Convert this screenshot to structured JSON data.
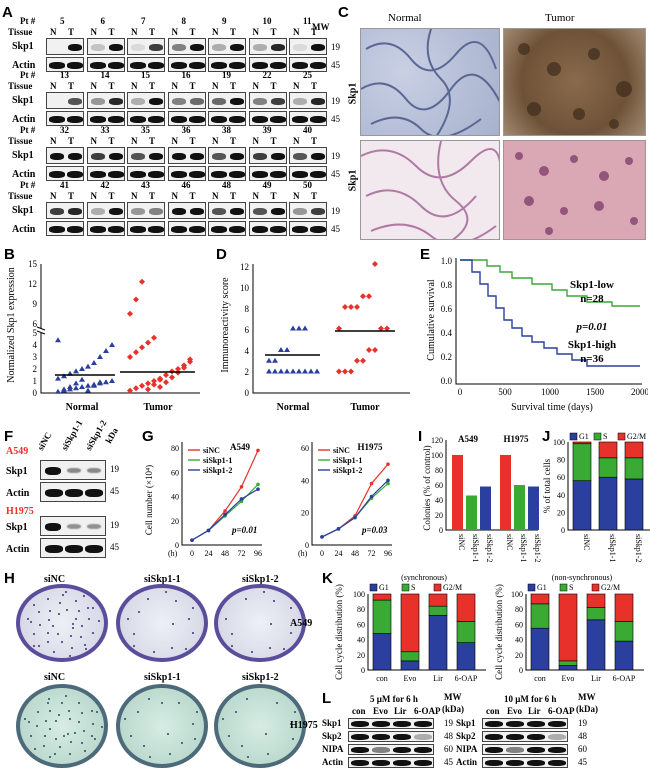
{
  "panels": {
    "A": "A",
    "B": "B",
    "C": "C",
    "D": "D",
    "E": "E",
    "F": "F",
    "G": "G",
    "H": "H",
    "I": "I",
    "J": "J",
    "K": "K",
    "L": "L"
  },
  "blotA": {
    "pt_label": "Pt #",
    "tissue_label": "Tissue",
    "skp1": "Skp1",
    "actin": "Actin",
    "mw": "MW",
    "mw19": "19",
    "mw45": "45",
    "n": "N",
    "t": "T",
    "rows": [
      [
        "5",
        "6",
        "7",
        "8",
        "9",
        "10",
        "11"
      ],
      [
        "13",
        "14",
        "15",
        "16",
        "19",
        "22",
        "25"
      ],
      [
        "32",
        "33",
        "35",
        "36",
        "38",
        "39",
        "40"
      ],
      [
        "41",
        "42",
        "43",
        "46",
        "48",
        "49",
        "50"
      ]
    ]
  },
  "panelC": {
    "normal": "Normal",
    "tumor": "Tumor",
    "row_label": "Skp1"
  },
  "panelB": {
    "ylabel": "Normalized Skp1 expression",
    "x": [
      "Normal",
      "Tumor"
    ],
    "yticks_top": [
      "15",
      "12",
      "9",
      "6"
    ],
    "yticks_bottom": [
      "5",
      "4",
      "3",
      "2",
      "1",
      "0"
    ]
  },
  "panelD": {
    "ylabel": "Immunoreactivity score",
    "x": [
      "Normal",
      "Tumor"
    ],
    "yticks": [
      "12",
      "10",
      "8",
      "6",
      "4",
      "2",
      "0"
    ]
  },
  "panelE": {
    "ylabel": "Cumulative survival",
    "xlabel": "Survival time (days)",
    "xticks": [
      "0",
      "500",
      "1000",
      "1500",
      "2000"
    ],
    "yticks": [
      "1.0",
      "0.8",
      "0.6",
      "0.4",
      "0.2",
      "0.0"
    ],
    "low": "Skp1-low",
    "low_n": "n=28",
    "p": "p=0.01",
    "high": "Skp1-high",
    "high_n": "n=36"
  },
  "panelF": {
    "lanes": [
      "siNC",
      "siSkp1-1",
      "siSkp1-2"
    ],
    "kda": "kDa",
    "a549": "A549",
    "h1975": "H1975",
    "skp1": "Skp1",
    "actin": "Actin",
    "mw19": "19",
    "mw45": "45"
  },
  "chart_data": [
    {
      "type": "line",
      "title": "A549",
      "xlabel": "(h)",
      "ylabel": "Cell number (×10⁴)",
      "x": [
        0,
        24,
        48,
        72,
        96
      ],
      "ylim": [
        0,
        80
      ],
      "yticks": [
        "80",
        "60",
        "40",
        "20",
        "0"
      ],
      "series": [
        {
          "name": "siNC",
          "values": [
            4,
            12,
            28,
            48,
            78
          ]
        },
        {
          "name": "siSkp1-1",
          "values": [
            4,
            12,
            24,
            36,
            50
          ]
        },
        {
          "name": "siSkp1-2",
          "values": [
            4,
            12,
            25,
            38,
            46
          ]
        }
      ],
      "annotation": "p=0.01"
    },
    {
      "type": "line",
      "title": "H1975",
      "xlabel": "(h)",
      "ylabel": "",
      "x": [
        0,
        24,
        48,
        72,
        96
      ],
      "ylim": [
        0,
        60
      ],
      "yticks": [
        "60",
        "40",
        "20",
        "0"
      ],
      "series": [
        {
          "name": "siNC",
          "values": [
            5,
            10,
            18,
            38,
            50
          ]
        },
        {
          "name": "siSkp1-1",
          "values": [
            5,
            10,
            17,
            29,
            38
          ]
        },
        {
          "name": "siSkp1-2",
          "values": [
            5,
            10,
            17,
            30,
            40
          ]
        }
      ],
      "annotation": "p=0.03"
    },
    {
      "type": "bar",
      "title": "",
      "ylabel": "Colonies (% of control)",
      "groups": [
        "A549",
        "H1975"
      ],
      "categories": [
        "siNC",
        "siSkp1-1",
        "siSkp1-2"
      ],
      "ylim": [
        0,
        120
      ],
      "yticks": [
        "120",
        "100",
        "80",
        "60",
        "40",
        "20",
        "0"
      ],
      "series": [
        {
          "name": "A549",
          "values": [
            100,
            46,
            58
          ]
        },
        {
          "name": "H1975",
          "values": [
            100,
            60,
            58
          ]
        }
      ]
    },
    {
      "type": "bar",
      "stacked": true,
      "ylabel": "% of total cells",
      "categories": [
        "siNC",
        "siSkp1-1",
        "siSkp1-2"
      ],
      "ylim": [
        0,
        100
      ],
      "yticks": [
        "100",
        "80",
        "60",
        "40",
        "20",
        "0"
      ],
      "series": [
        {
          "name": "G1",
          "values": [
            56,
            60,
            58
          ]
        },
        {
          "name": "S",
          "values": [
            42,
            22,
            24
          ]
        },
        {
          "name": "G2/M",
          "values": [
            2,
            18,
            18
          ]
        }
      ]
    },
    {
      "type": "bar",
      "stacked": true,
      "title": "(synchronous)",
      "ylabel": "Cell cycle distribution (%)",
      "categories": [
        "con",
        "Evo",
        "Lir",
        "6-OAP"
      ],
      "ylim": [
        0,
        100
      ],
      "yticks": [
        "100",
        "80",
        "60",
        "40",
        "20",
        "0"
      ],
      "series": [
        {
          "name": "G1",
          "values": [
            48,
            12,
            72,
            36
          ]
        },
        {
          "name": "S",
          "values": [
            44,
            12,
            12,
            28
          ]
        },
        {
          "name": "G2/M",
          "values": [
            8,
            76,
            16,
            36
          ]
        }
      ]
    },
    {
      "type": "bar",
      "stacked": true,
      "title": "(non-synchronous)",
      "ylabel": "Cell cycle distribution (%)",
      "categories": [
        "con",
        "Evo",
        "Lir",
        "6-OAP"
      ],
      "ylim": [
        0,
        100
      ],
      "yticks": [
        "100",
        "80",
        "60",
        "40",
        "20",
        "0"
      ],
      "series": [
        {
          "name": "G1",
          "values": [
            55,
            6,
            66,
            38
          ]
        },
        {
          "name": "S",
          "values": [
            32,
            6,
            16,
            26
          ]
        },
        {
          "name": "G2/M",
          "values": [
            13,
            88,
            18,
            36
          ]
        }
      ]
    }
  ],
  "panelG_legend": [
    "siNC",
    "siSkp1-1",
    "siSkp1-2"
  ],
  "legendIJK": {
    "g1": "G1",
    "s": "S",
    "g2m": "G2/M"
  },
  "panelH": {
    "cols": [
      "siNC",
      "siSkp1-1",
      "siSkp1-2"
    ],
    "rows": [
      "A549",
      "H1975"
    ]
  },
  "panelL": {
    "left_header": "5 μM for 6 h",
    "right_header": "10 μM for 6 h",
    "lanes": [
      "con",
      "Evo",
      "Lir",
      "6-OAP"
    ],
    "mw": "MW",
    "kda": "(kDa)",
    "proteins": [
      "Skp1",
      "Skp2",
      "NIPA",
      "Actin"
    ],
    "mws": [
      "19",
      "48",
      "60",
      "45"
    ]
  },
  "colors": {
    "red": "#e8312a",
    "green": "#3aaa35",
    "blue": "#2b3f9e",
    "navy": "#1f2f8c"
  }
}
